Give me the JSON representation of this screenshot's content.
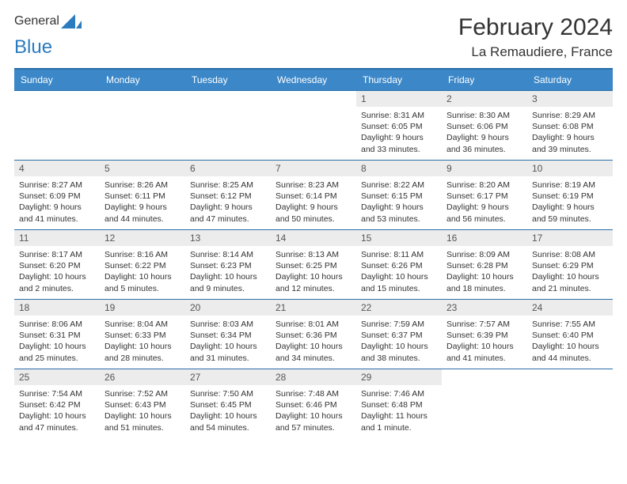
{
  "logo": {
    "text1": "General",
    "text2": "Blue",
    "icon_fill": "#2b7bbf"
  },
  "title": "February 2024",
  "location": "La Remaudiere, France",
  "colors": {
    "header_bg": "#3b87c8",
    "header_text": "#ffffff",
    "rule": "#2b6fa8",
    "daynum_bg": "#ececec",
    "body_text": "#333333"
  },
  "day_headers": [
    "Sunday",
    "Monday",
    "Tuesday",
    "Wednesday",
    "Thursday",
    "Friday",
    "Saturday"
  ],
  "weeks": [
    [
      null,
      null,
      null,
      null,
      {
        "n": "1",
        "sunrise": "8:31 AM",
        "sunset": "6:05 PM",
        "daylight": "9 hours and 33 minutes."
      },
      {
        "n": "2",
        "sunrise": "8:30 AM",
        "sunset": "6:06 PM",
        "daylight": "9 hours and 36 minutes."
      },
      {
        "n": "3",
        "sunrise": "8:29 AM",
        "sunset": "6:08 PM",
        "daylight": "9 hours and 39 minutes."
      }
    ],
    [
      {
        "n": "4",
        "sunrise": "8:27 AM",
        "sunset": "6:09 PM",
        "daylight": "9 hours and 41 minutes."
      },
      {
        "n": "5",
        "sunrise": "8:26 AM",
        "sunset": "6:11 PM",
        "daylight": "9 hours and 44 minutes."
      },
      {
        "n": "6",
        "sunrise": "8:25 AM",
        "sunset": "6:12 PM",
        "daylight": "9 hours and 47 minutes."
      },
      {
        "n": "7",
        "sunrise": "8:23 AM",
        "sunset": "6:14 PM",
        "daylight": "9 hours and 50 minutes."
      },
      {
        "n": "8",
        "sunrise": "8:22 AM",
        "sunset": "6:15 PM",
        "daylight": "9 hours and 53 minutes."
      },
      {
        "n": "9",
        "sunrise": "8:20 AM",
        "sunset": "6:17 PM",
        "daylight": "9 hours and 56 minutes."
      },
      {
        "n": "10",
        "sunrise": "8:19 AM",
        "sunset": "6:19 PM",
        "daylight": "9 hours and 59 minutes."
      }
    ],
    [
      {
        "n": "11",
        "sunrise": "8:17 AM",
        "sunset": "6:20 PM",
        "daylight": "10 hours and 2 minutes."
      },
      {
        "n": "12",
        "sunrise": "8:16 AM",
        "sunset": "6:22 PM",
        "daylight": "10 hours and 5 minutes."
      },
      {
        "n": "13",
        "sunrise": "8:14 AM",
        "sunset": "6:23 PM",
        "daylight": "10 hours and 9 minutes."
      },
      {
        "n": "14",
        "sunrise": "8:13 AM",
        "sunset": "6:25 PM",
        "daylight": "10 hours and 12 minutes."
      },
      {
        "n": "15",
        "sunrise": "8:11 AM",
        "sunset": "6:26 PM",
        "daylight": "10 hours and 15 minutes."
      },
      {
        "n": "16",
        "sunrise": "8:09 AM",
        "sunset": "6:28 PM",
        "daylight": "10 hours and 18 minutes."
      },
      {
        "n": "17",
        "sunrise": "8:08 AM",
        "sunset": "6:29 PM",
        "daylight": "10 hours and 21 minutes."
      }
    ],
    [
      {
        "n": "18",
        "sunrise": "8:06 AM",
        "sunset": "6:31 PM",
        "daylight": "10 hours and 25 minutes."
      },
      {
        "n": "19",
        "sunrise": "8:04 AM",
        "sunset": "6:33 PM",
        "daylight": "10 hours and 28 minutes."
      },
      {
        "n": "20",
        "sunrise": "8:03 AM",
        "sunset": "6:34 PM",
        "daylight": "10 hours and 31 minutes."
      },
      {
        "n": "21",
        "sunrise": "8:01 AM",
        "sunset": "6:36 PM",
        "daylight": "10 hours and 34 minutes."
      },
      {
        "n": "22",
        "sunrise": "7:59 AM",
        "sunset": "6:37 PM",
        "daylight": "10 hours and 38 minutes."
      },
      {
        "n": "23",
        "sunrise": "7:57 AM",
        "sunset": "6:39 PM",
        "daylight": "10 hours and 41 minutes."
      },
      {
        "n": "24",
        "sunrise": "7:55 AM",
        "sunset": "6:40 PM",
        "daylight": "10 hours and 44 minutes."
      }
    ],
    [
      {
        "n": "25",
        "sunrise": "7:54 AM",
        "sunset": "6:42 PM",
        "daylight": "10 hours and 47 minutes."
      },
      {
        "n": "26",
        "sunrise": "7:52 AM",
        "sunset": "6:43 PM",
        "daylight": "10 hours and 51 minutes."
      },
      {
        "n": "27",
        "sunrise": "7:50 AM",
        "sunset": "6:45 PM",
        "daylight": "10 hours and 54 minutes."
      },
      {
        "n": "28",
        "sunrise": "7:48 AM",
        "sunset": "6:46 PM",
        "daylight": "10 hours and 57 minutes."
      },
      {
        "n": "29",
        "sunrise": "7:46 AM",
        "sunset": "6:48 PM",
        "daylight": "11 hours and 1 minute."
      },
      null,
      null
    ]
  ],
  "labels": {
    "sunrise": "Sunrise:",
    "sunset": "Sunset:",
    "daylight": "Daylight:"
  }
}
